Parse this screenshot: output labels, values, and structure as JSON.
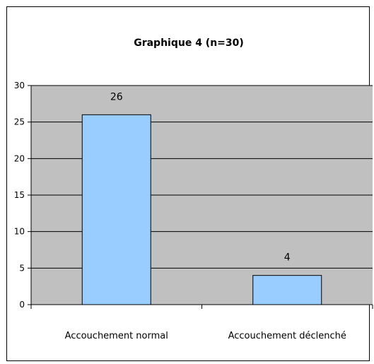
{
  "chart_data": {
    "type": "bar",
    "title": "Graphique 4 (n=30)",
    "categories": [
      "Accouchement normal",
      "Accouchement déclenché"
    ],
    "values": [
      26,
      4
    ],
    "data_labels": [
      "26",
      "4"
    ],
    "ylim": [
      0,
      30
    ],
    "yticks": [
      "0",
      "5",
      "10",
      "15",
      "20",
      "25",
      "30"
    ],
    "grid": true,
    "legend": "none",
    "colors": {
      "plot_background": "#c0c0c0",
      "bar_fill": "#99ccff",
      "bar_stroke": "#000000"
    }
  }
}
